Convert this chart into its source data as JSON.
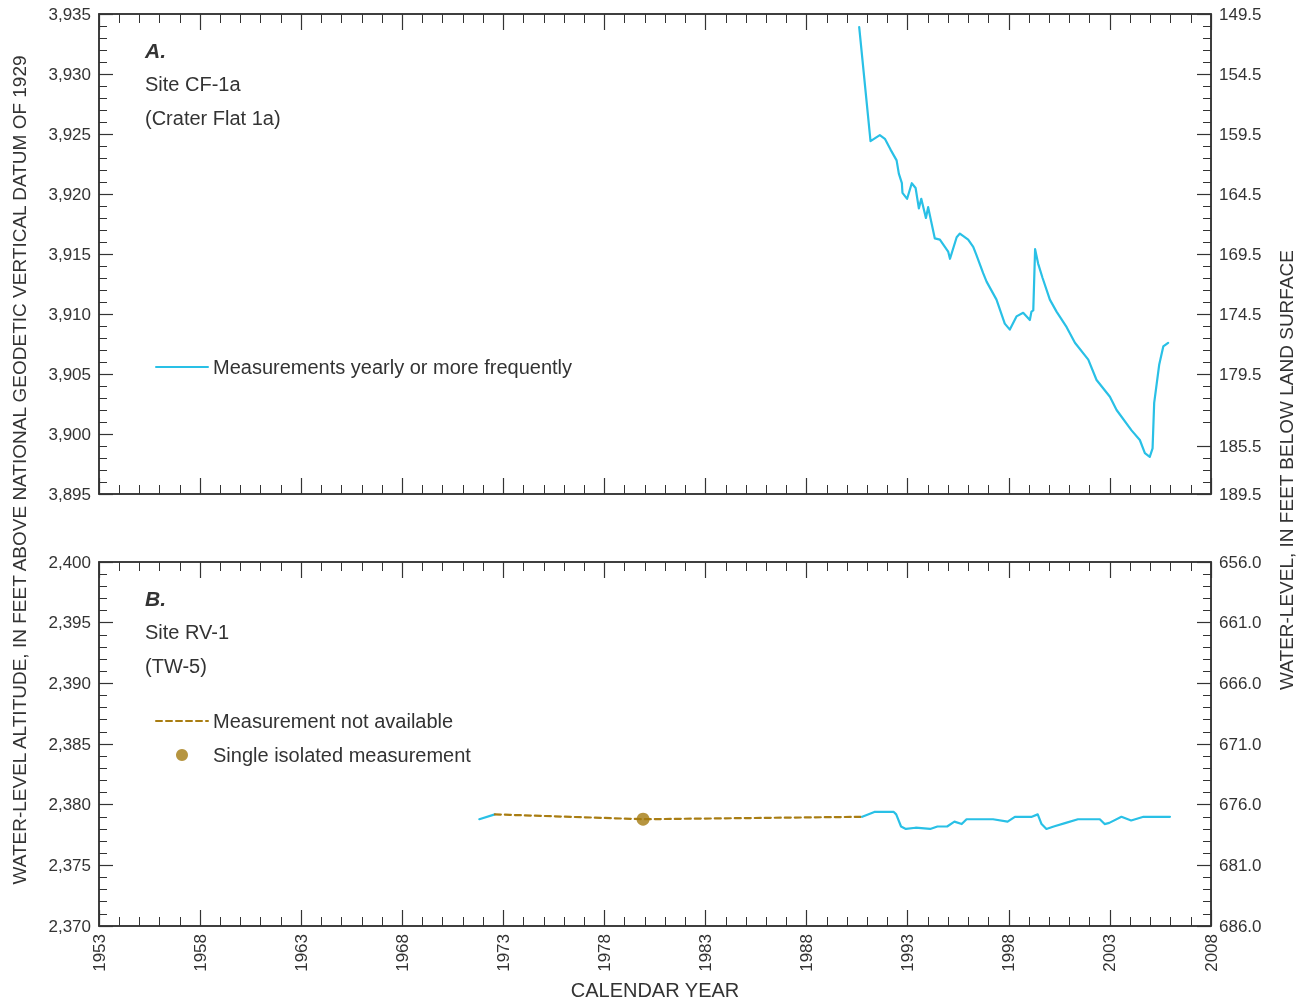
{
  "chart_data": [
    {
      "type": "line",
      "annotations": [
        "A.",
        "Site CF-1a",
        "(Crater Flat 1a)"
      ],
      "ylabel": "WATER-LEVEL ALTITUDE, IN FEET ABOVE NATIONAL GEODETIC VERTICAL DATUM OF 1929",
      "y2label": "WATER-LEVEL, IN FEET BELOW LAND SURFACE",
      "xlim": [
        1953,
        2008
      ],
      "xticks": [
        1953,
        1958,
        1963,
        1968,
        1973,
        1978,
        1983,
        1988,
        1993,
        1998,
        2003,
        2008
      ],
      "ylim": [
        3895,
        3935
      ],
      "yticks": [
        {
          "value": 3895,
          "label": "3,895"
        },
        {
          "value": 3900,
          "label": "3,900"
        },
        {
          "value": 3905,
          "label": "3,905"
        },
        {
          "value": 3910,
          "label": "3,910"
        },
        {
          "value": 3915,
          "label": "3,915"
        },
        {
          "value": 3920,
          "label": "3,920"
        },
        {
          "value": 3925,
          "label": "3,925"
        },
        {
          "value": 3930,
          "label": "3,930"
        },
        {
          "value": 3935,
          "label": "3,935"
        }
      ],
      "y2lim": [
        189.5,
        149.5
      ],
      "y2ticks": [
        {
          "value": 189.5,
          "label": "189.5"
        },
        185.5,
        {
          "value": 179.5,
          "label": "179.5"
        },
        {
          "value": 174.5,
          "label": "174.5"
        },
        {
          "value": 169.5,
          "label": "169.5"
        },
        {
          "value": 164.5,
          "label": "164.5"
        },
        {
          "value": 159.5,
          "label": "159.5"
        },
        {
          "value": 154.5,
          "label": "154.5"
        },
        {
          "value": 149.5,
          "label": "149.5"
        }
      ],
      "tick_labels": "y",
      "grid": false,
      "legend": "left",
      "marker": "none",
      "line_style": "solid",
      "series": [
        {
          "name": "Measurements yearly or more frequently",
          "color": "#29c0e6",
          "x": [
            1990.6,
            1991.16,
            1991.62,
            1991.87,
            1992.15,
            1992.45,
            1992.56,
            1992.71,
            1992.74,
            1992.97,
            1993.2,
            1993.39,
            1993.55,
            1993.67,
            1993.9,
            1994.01,
            1994.34,
            1994.59,
            1995.0,
            1995.09,
            1995.42,
            1995.58,
            1995.99,
            1996.24,
            1996.4,
            1996.73,
            1996.9,
            1997.39,
            1997.8,
            1998.05,
            1998.38,
            1998.71,
            1999.04,
            1999.12,
            1999.21,
            1999.3,
            1999.45,
            1999.67,
            2000.03,
            2000.36,
            2000.86,
            2001.27,
            2001.93,
            2002.34,
            2003.0,
            2003.33,
            2004.07,
            2004.48,
            2004.73,
            2004.97,
            2005.11,
            2005.19,
            2005.44,
            2005.64,
            2005.88
          ],
          "values": [
            3933.9,
            3924.4,
            3924.9,
            3924.6,
            3923.7,
            3922.8,
            3921.7,
            3920.9,
            3920.1,
            3919.6,
            3920.9,
            3920.5,
            3918.8,
            3919.6,
            3918.0,
            3918.9,
            3916.3,
            3916.2,
            3915.2,
            3914.6,
            3916.4,
            3916.7,
            3916.2,
            3915.6,
            3914.9,
            3913.4,
            3912.7,
            3911.2,
            3909.2,
            3908.7,
            3909.8,
            3910.1,
            3909.5,
            3910.2,
            3910.3,
            3915.4,
            3914.2,
            3913.0,
            3911.2,
            3910.2,
            3908.9,
            3907.6,
            3906.2,
            3904.5,
            3903.1,
            3902.0,
            3900.3,
            3899.5,
            3898.4,
            3898.1,
            3898.8,
            3902.6,
            3905.8,
            3907.3,
            3907.6
          ]
        }
      ]
    },
    {
      "type": "line",
      "annotations": [
        "B.",
        "Site RV-1",
        "(TW-5)"
      ],
      "xlabel": "CALENDAR YEAR",
      "xlim": [
        1953,
        2008
      ],
      "xticks": [
        1953,
        1958,
        1963,
        1968,
        1973,
        1978,
        1983,
        1988,
        1993,
        1998,
        2003,
        2008
      ],
      "ylim": [
        2370,
        2400
      ],
      "yticks": [
        {
          "value": 2370,
          "label": "2,370"
        },
        {
          "value": 2375,
          "label": "2,375"
        },
        {
          "value": 2380,
          "label": "2,380"
        },
        {
          "value": 2385,
          "label": "2,385"
        },
        {
          "value": 2390,
          "label": "2,390"
        },
        {
          "value": 2395,
          "label": "2,395"
        },
        {
          "value": 2400,
          "label": "2,400"
        }
      ],
      "y2lim": [
        686,
        656
      ],
      "y2ticks": [
        {
          "value": 686,
          "label": "686.0"
        },
        {
          "value": 681,
          "label": "681.0"
        },
        {
          "value": 676,
          "label": "676.0"
        },
        {
          "value": 671,
          "label": "671.0"
        },
        {
          "value": 666,
          "label": "666.0"
        },
        {
          "value": 661,
          "label": "661.0"
        },
        {
          "value": 656,
          "label": "656.0"
        }
      ],
      "grid": false,
      "legend": "left",
      "marker": "none",
      "line_style": "solid",
      "series": [
        {
          "color": "#29c0e6",
          "x": [
            1971.81,
            1972.58
          ],
          "values": [
            2378.8,
            2379.2
          ]
        },
        {
          "name": "Measurement not available",
          "color": "#a97d12",
          "line_style": "dashed",
          "x": [
            1972.58,
            1979.91,
            1990.75
          ],
          "values": [
            2379.2,
            2378.8,
            2379.0
          ]
        },
        {
          "color": "#29c0e6",
          "x": [
            1990.75,
            1991.35,
            1992.31,
            1992.43,
            1992.67,
            1992.91,
            1993.39,
            1994.11,
            1994.47,
            1994.95,
            1995.31,
            1995.67,
            1995.91,
            1997.22,
            1997.94,
            1998.3,
            1999.14,
            1999.43,
            1999.62,
            1999.86,
            2000.22,
            2000.82,
            2001.42,
            2002.5,
            2002.74,
            2002.97,
            2003.57,
            2004.05,
            2004.66,
            2005.37,
            2005.97
          ],
          "values": [
            2379.0,
            2379.4,
            2379.4,
            2379.2,
            2378.2,
            2378.0,
            2378.1,
            2378.0,
            2378.2,
            2378.2,
            2378.6,
            2378.4,
            2378.8,
            2378.8,
            2378.6,
            2379.0,
            2379.0,
            2379.2,
            2378.4,
            2378.0,
            2378.2,
            2378.5,
            2378.8,
            2378.8,
            2378.4,
            2378.5,
            2379.0,
            2378.7,
            2379.0,
            2379.0,
            2379.0
          ]
        },
        {
          "name": "Single isolated measurement",
          "type": "scatter",
          "marker": "circle",
          "color": "#a47a10",
          "x": [
            1979.91
          ],
          "values": [
            2378.8
          ]
        }
      ]
    }
  ]
}
